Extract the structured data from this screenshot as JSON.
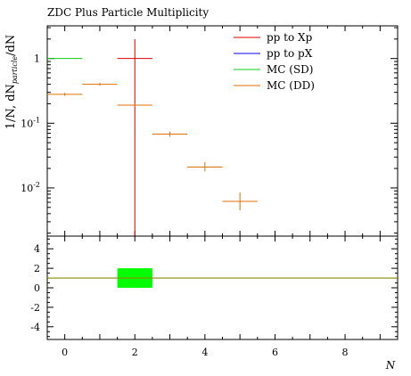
{
  "chart_data": {
    "type": "scatter",
    "title": "ZDC Plus Particle Multiplicity",
    "xlabel": "N",
    "ylabel_main": "1/N, dN_particle/dN",
    "xlim": [
      -0.5,
      9.5
    ],
    "ylim_main": [
      0.0018,
      3.2
    ],
    "yscale_main": "log",
    "ylim_ratio": [
      -5.3,
      5.3
    ],
    "x_ticks": [
      0,
      2,
      4,
      6,
      8
    ],
    "y_ticks_main": [
      {
        "value": 1,
        "label": "1"
      },
      {
        "value": 0.1,
        "label": "10^-1"
      },
      {
        "value": 0.01,
        "label": "10^-2"
      }
    ],
    "y_ticks_ratio": [
      4,
      2,
      0,
      -2,
      -4
    ],
    "legend_position": "top-right",
    "series": [
      {
        "name": "pp to Xp",
        "color": "#dd0000",
        "points": [
          {
            "x": 2,
            "xlo": 1.5,
            "xhi": 2.5,
            "y": 1.0,
            "ylo": 0.0018,
            "yhi": 2.0
          }
        ]
      },
      {
        "name": "pp to pX",
        "color": "#0000dd",
        "points": []
      },
      {
        "name": "MC (SD)",
        "color": "#11cc11",
        "points": [
          {
            "x": 0,
            "xlo": -0.5,
            "xhi": 0.5,
            "y": 1.0,
            "ylo": 0.99,
            "yhi": 1.01
          }
        ]
      },
      {
        "name": "MC (DD)",
        "color": "#e07000",
        "points": [
          {
            "x": 0,
            "xlo": -0.5,
            "xhi": 0.5,
            "y": 0.28,
            "ylo": 0.265,
            "yhi": 0.295
          },
          {
            "x": 1,
            "xlo": 0.5,
            "xhi": 1.5,
            "y": 0.4,
            "ylo": 0.38,
            "yhi": 0.42
          },
          {
            "x": 2,
            "xlo": 1.5,
            "xhi": 2.5,
            "y": 0.19,
            "ylo": 0.18,
            "yhi": 0.2
          },
          {
            "x": 3,
            "xlo": 2.5,
            "xhi": 3.5,
            "y": 0.068,
            "ylo": 0.062,
            "yhi": 0.074
          },
          {
            "x": 4,
            "xlo": 3.5,
            "xhi": 4.5,
            "y": 0.021,
            "ylo": 0.018,
            "yhi": 0.025
          },
          {
            "x": 5,
            "xlo": 4.5,
            "xhi": 5.5,
            "y": 0.0062,
            "ylo": 0.0045,
            "yhi": 0.0085
          }
        ]
      }
    ],
    "ratio": {
      "reference_line": {
        "y": 1,
        "color": "#8b8b00"
      },
      "bands": [
        {
          "x0": 1.5,
          "x1": 2.5,
          "y0": 0,
          "y1": 2,
          "color": "#00ff00"
        }
      ]
    }
  }
}
